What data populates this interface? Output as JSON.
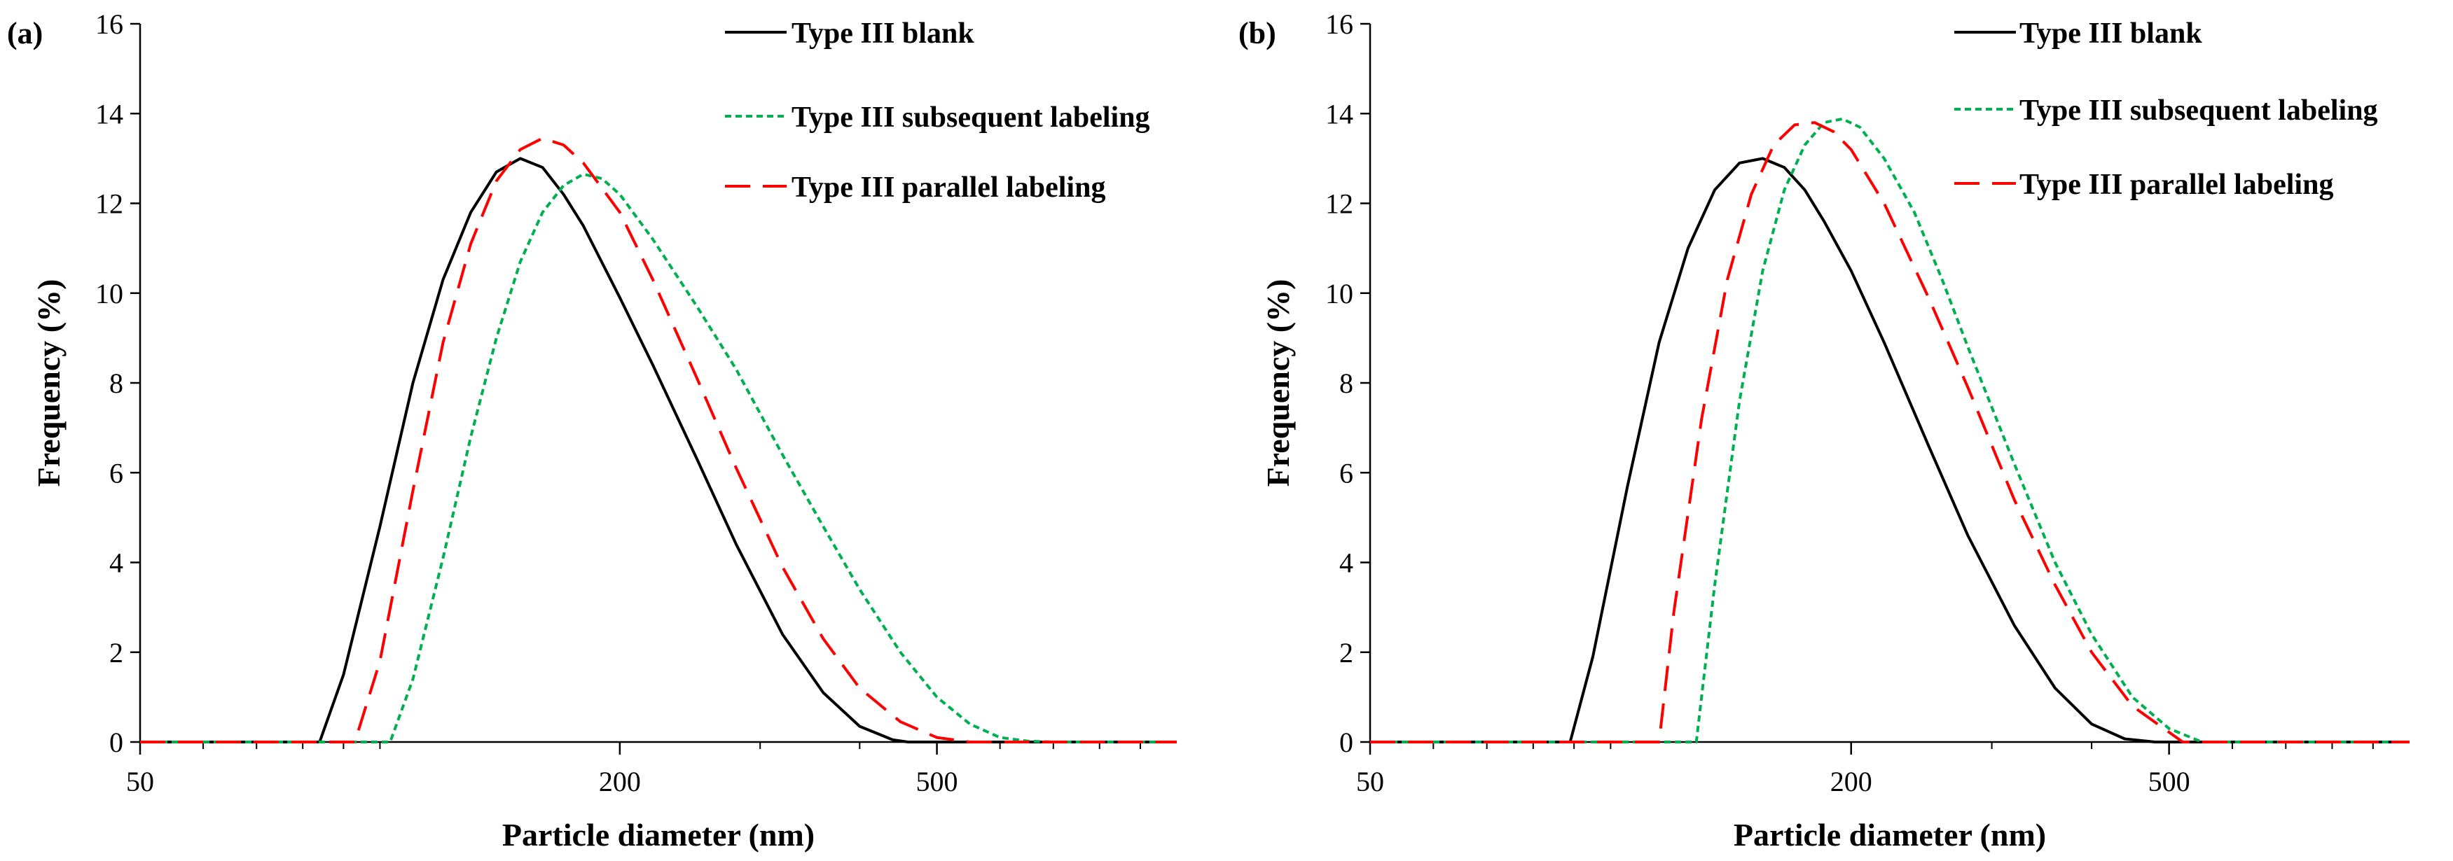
{
  "chart_data": [
    {
      "panel_label": "(a)",
      "type": "line",
      "xscale": "log",
      "xlabel": "Particle diameter (nm)",
      "ylabel": "Frequency (%)",
      "xlim": [
        50,
        1000
      ],
      "ylim": [
        0,
        16
      ],
      "xticks": [
        {
          "value": 50,
          "label": "50"
        },
        {
          "value": 200,
          "label": "200"
        },
        {
          "value": 500,
          "label": "500"
        }
      ],
      "yticks": [
        0,
        2,
        4,
        6,
        8,
        10,
        12,
        14,
        16
      ],
      "legend_position": "top-right",
      "series": [
        {
          "name": "Type III blank",
          "style": "solid",
          "color": "#000000",
          "x": [
            50,
            80,
            84,
            90,
            100,
            110,
            120,
            130,
            140,
            150,
            160,
            170,
            180,
            200,
            220,
            250,
            280,
            320,
            360,
            400,
            440,
            460,
            500,
            1000
          ],
          "y": [
            0,
            0,
            0.0,
            1.5,
            4.8,
            8.0,
            10.3,
            11.8,
            12.7,
            13.0,
            12.8,
            12.2,
            11.5,
            9.9,
            8.4,
            6.3,
            4.4,
            2.4,
            1.1,
            0.35,
            0.05,
            0.0,
            0,
            0
          ]
        },
        {
          "name": "Type III subsequent labeling",
          "style": "dotted",
          "color": "#00b050",
          "x": [
            50,
            100,
            103,
            110,
            120,
            130,
            140,
            150,
            160,
            170,
            180,
            190,
            200,
            220,
            250,
            280,
            320,
            360,
            400,
            450,
            500,
            550,
            600,
            650,
            700,
            1000
          ],
          "y": [
            0,
            0,
            0.0,
            1.4,
            4.1,
            6.8,
            9.0,
            10.7,
            11.8,
            12.4,
            12.65,
            12.55,
            12.2,
            11.2,
            9.7,
            8.3,
            6.4,
            4.8,
            3.4,
            2.0,
            1.0,
            0.4,
            0.1,
            0.02,
            0,
            0
          ]
        },
        {
          "name": "Type III parallel labeling",
          "style": "dashed",
          "color": "#ff0000",
          "x": [
            50,
            90,
            93,
            100,
            110,
            120,
            130,
            140,
            150,
            160,
            170,
            180,
            200,
            220,
            250,
            280,
            320,
            360,
            400,
            450,
            500,
            550,
            1000
          ],
          "y": [
            0,
            0,
            0.0,
            1.8,
            5.6,
            8.9,
            11.1,
            12.5,
            13.2,
            13.45,
            13.3,
            12.9,
            11.8,
            10.3,
            8.1,
            6.1,
            3.9,
            2.3,
            1.2,
            0.45,
            0.1,
            0,
            0
          ]
        }
      ]
    },
    {
      "panel_label": "(b)",
      "type": "line",
      "xscale": "log",
      "xlabel": "Particle diameter (nm)",
      "ylabel": "Frequency (%)",
      "xlim": [
        50,
        1000
      ],
      "ylim": [
        0,
        16
      ],
      "xticks": [
        {
          "value": 50,
          "label": "50"
        },
        {
          "value": 200,
          "label": "200"
        },
        {
          "value": 500,
          "label": "500"
        }
      ],
      "yticks": [
        0,
        2,
        4,
        6,
        8,
        10,
        12,
        14,
        16
      ],
      "legend_position": "top-right",
      "series": [
        {
          "name": "Type III blank",
          "style": "solid",
          "color": "#000000",
          "x": [
            50,
            85,
            89,
            95,
            105,
            115,
            125,
            135,
            145,
            155,
            165,
            175,
            185,
            200,
            220,
            250,
            280,
            320,
            360,
            400,
            440,
            480,
            1000
          ],
          "y": [
            0,
            0,
            0.0,
            1.9,
            5.7,
            8.9,
            11.0,
            12.3,
            12.9,
            13.0,
            12.8,
            12.3,
            11.6,
            10.5,
            8.9,
            6.6,
            4.6,
            2.6,
            1.2,
            0.4,
            0.07,
            0,
            0
          ]
        },
        {
          "name": "Type III subsequent labeling",
          "style": "dotted",
          "color": "#00b050",
          "x": [
            50,
            125,
            128,
            135,
            145,
            155,
            165,
            175,
            185,
            195,
            205,
            220,
            240,
            260,
            280,
            320,
            360,
            400,
            450,
            500,
            550,
            1000
          ],
          "y": [
            0,
            0,
            0.0,
            3.5,
            7.6,
            10.5,
            12.3,
            13.3,
            13.8,
            13.88,
            13.7,
            13.0,
            11.8,
            10.3,
            8.8,
            6.2,
            4.0,
            2.4,
            1.0,
            0.3,
            0,
            0
          ]
        },
        {
          "name": "Type III parallel labeling",
          "style": "dashed",
          "color": "#ff0000",
          "x": [
            50,
            112,
            115,
            120,
            130,
            140,
            150,
            160,
            170,
            180,
            190,
            200,
            220,
            250,
            280,
            320,
            360,
            400,
            450,
            520,
            1000
          ],
          "y": [
            0,
            0,
            0.0,
            2.9,
            7.2,
            10.3,
            12.2,
            13.3,
            13.75,
            13.8,
            13.6,
            13.2,
            12.0,
            9.9,
            7.9,
            5.4,
            3.5,
            2.0,
            0.8,
            0,
            0
          ]
        }
      ]
    }
  ]
}
